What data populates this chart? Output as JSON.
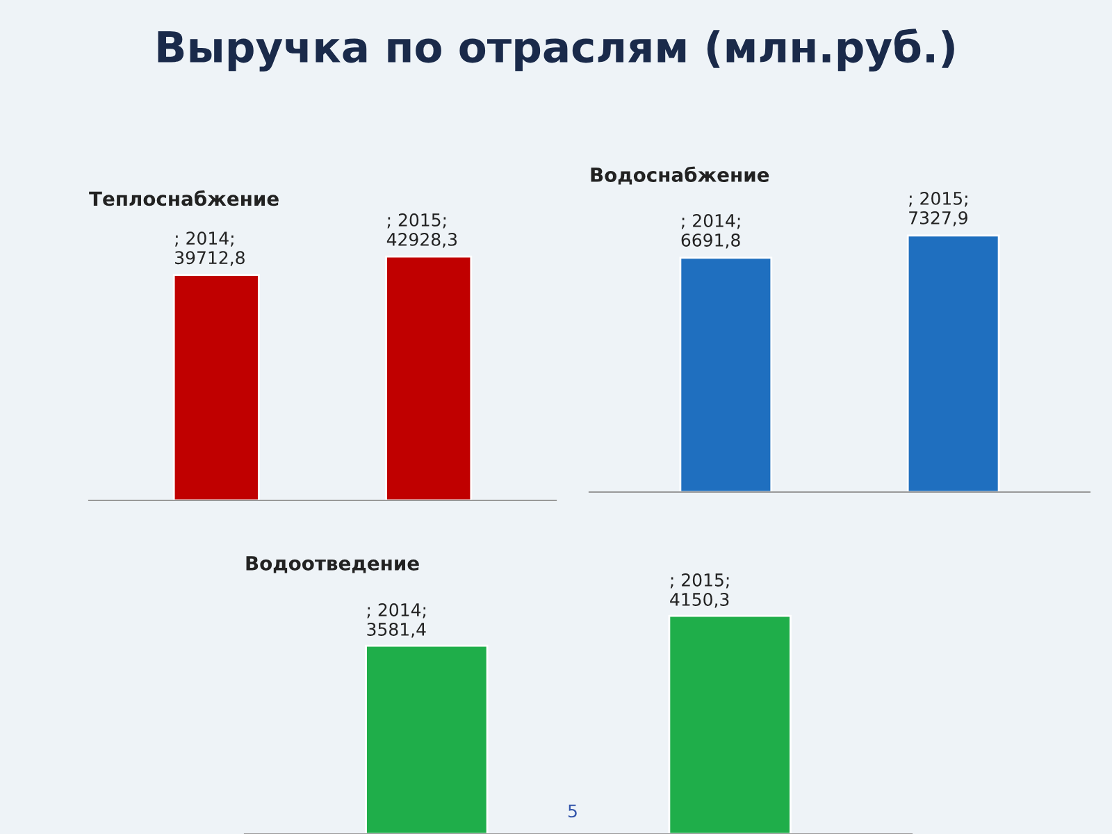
{
  "chart_data": [
    {
      "type": "bar",
      "title": "Выручка по отраслям (млн.руб.)",
      "subtitle": "Теплоснабжение",
      "categories": [
        null,
        null
      ],
      "values": [
        39712.8,
        42928.3
      ],
      "color": "#c00000",
      "value_labels": [
        "; 2014; 39712,8",
        "; 2015; 42928,3"
      ],
      "tick_labels": false
    },
    {
      "type": "bar",
      "subtitle": "Водоснабжение",
      "categories": [
        null,
        null
      ],
      "values": [
        6691.8,
        7327.9
      ],
      "color": "#1f6fbf",
      "value_labels": [
        "; 2014; 6691,8",
        "; 2015; 7327,9"
      ],
      "tick_labels": false
    },
    {
      "type": "bar",
      "subtitle": "Водоотведение",
      "categories": [
        null,
        null
      ],
      "values": [
        3581.4,
        4150.3
      ],
      "color": "#1fae4a",
      "value_labels": [
        "; 2014; 3581,4",
        "; 2015; 4150,3"
      ],
      "tick_labels": false,
      "annotations": [
        "5"
      ]
    }
  ]
}
